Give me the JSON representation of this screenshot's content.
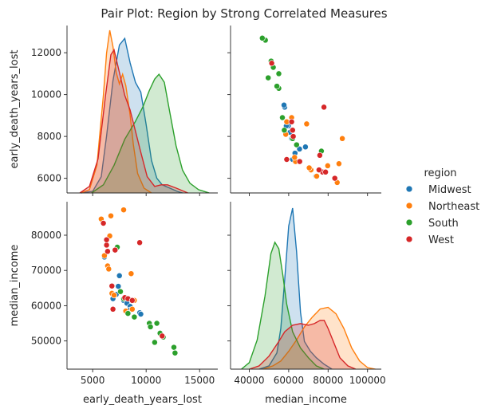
{
  "chart_data": {
    "type": "scatter",
    "title": "Pair Plot: Region by Strong Correlated Measures",
    "variables": [
      "early_death_years_lost",
      "median_income"
    ],
    "legend": {
      "title": "region",
      "placement": "right",
      "entries": [
        "Midwest",
        "Northeast",
        "South",
        "West"
      ]
    },
    "colors": {
      "Midwest": "#1f77b4",
      "Northeast": "#ff7f0e",
      "South": "#2ca02c",
      "West": "#d62728"
    },
    "axes": {
      "early_death_years_lost": {
        "range": [
          2600,
          16700
        ],
        "ticks": [
          5000,
          10000,
          15000
        ],
        "tick_labels": [
          "5000",
          "10000",
          "15000"
        ],
        "axis_range": [
          5300,
          13300
        ],
        "axis_ticks": [
          6000,
          8000,
          10000,
          12000
        ],
        "axis_tick_labels": [
          "6000",
          "8000",
          "10000",
          "12000"
        ]
      },
      "median_income": {
        "range": [
          30500,
          107000
        ],
        "ticks": [
          40000,
          60000,
          80000,
          100000
        ],
        "tick_labels": [
          "40000",
          "60000",
          "80000",
          "100000"
        ],
        "axis_range": [
          42000,
          89500
        ],
        "axis_ticks": [
          50000,
          60000,
          70000,
          80000
        ],
        "axis_tick_labels": [
          "50000",
          "60000",
          "70000",
          "80000"
        ]
      }
    },
    "points": {
      "Midwest": [
        [
          6100,
          73800
        ],
        [
          6900,
          62000
        ],
        [
          7200,
          63200
        ],
        [
          7400,
          65500
        ],
        [
          7500,
          68500
        ],
        [
          7900,
          61500
        ],
        [
          8200,
          60700
        ],
        [
          8500,
          59800
        ],
        [
          8500,
          58800
        ],
        [
          9400,
          57900
        ],
        [
          9400,
          58000
        ],
        [
          9500,
          57600
        ]
      ],
      "Northeast": [
        [
          5800,
          84600
        ],
        [
          6100,
          74200
        ],
        [
          6400,
          71300
        ],
        [
          6500,
          70400
        ],
        [
          6600,
          79800
        ],
        [
          6700,
          85500
        ],
        [
          6800,
          63500
        ],
        [
          7000,
          63000
        ],
        [
          7900,
          87200
        ],
        [
          8100,
          58500
        ],
        [
          8600,
          69100
        ],
        [
          8700,
          59000
        ],
        [
          8900,
          61500
        ]
      ],
      "South": [
        [
          7300,
          76600
        ],
        [
          7600,
          64000
        ],
        [
          7900,
          62000
        ],
        [
          8300,
          57800
        ],
        [
          8900,
          56800
        ],
        [
          10300,
          55000
        ],
        [
          10400,
          54000
        ],
        [
          10800,
          49600
        ],
        [
          11000,
          55000
        ],
        [
          11300,
          52200
        ],
        [
          11600,
          51100
        ],
        [
          12600,
          48200
        ],
        [
          12700,
          46600
        ]
      ],
      "West": [
        [
          6000,
          83400
        ],
        [
          6300,
          77200
        ],
        [
          6300,
          78700
        ],
        [
          6400,
          75400
        ],
        [
          6800,
          65600
        ],
        [
          6900,
          59000
        ],
        [
          7100,
          75800
        ],
        [
          8000,
          62300
        ],
        [
          8300,
          62000
        ],
        [
          8700,
          61500
        ],
        [
          9400,
          77900
        ],
        [
          11500,
          51400
        ]
      ]
    },
    "density_curves": {
      "early_death_years_lost": {
        "Midwest": [
          [
            3900,
            0.0
          ],
          [
            5000,
            0.01
          ],
          [
            5800,
            0.1
          ],
          [
            6300,
            0.35
          ],
          [
            6900,
            0.69
          ],
          [
            7500,
            0.91
          ],
          [
            8000,
            0.95
          ],
          [
            8500,
            0.8
          ],
          [
            9000,
            0.68
          ],
          [
            9500,
            0.62
          ],
          [
            10000,
            0.42
          ],
          [
            10500,
            0.2
          ],
          [
            11000,
            0.09
          ],
          [
            11500,
            0.05
          ],
          [
            12200,
            0.03
          ],
          [
            12900,
            0.01
          ],
          [
            13400,
            0.0
          ]
        ],
        "Northeast": [
          [
            3900,
            0.0
          ],
          [
            4700,
            0.02
          ],
          [
            5400,
            0.17
          ],
          [
            6000,
            0.6
          ],
          [
            6300,
            0.86
          ],
          [
            6600,
            1.0
          ],
          [
            6900,
            0.9
          ],
          [
            7200,
            0.74
          ],
          [
            7500,
            0.67
          ],
          [
            7800,
            0.73
          ],
          [
            8100,
            0.66
          ],
          [
            8500,
            0.48
          ],
          [
            8800,
            0.3
          ],
          [
            9200,
            0.12
          ],
          [
            9800,
            0.03
          ],
          [
            10500,
            0.0
          ]
        ],
        "South": [
          [
            4900,
            0.0
          ],
          [
            6000,
            0.05
          ],
          [
            7000,
            0.17
          ],
          [
            8000,
            0.33
          ],
          [
            9000,
            0.44
          ],
          [
            9700,
            0.53
          ],
          [
            10300,
            0.63
          ],
          [
            10800,
            0.7
          ],
          [
            11200,
            0.73
          ],
          [
            11700,
            0.68
          ],
          [
            12200,
            0.5
          ],
          [
            12800,
            0.29
          ],
          [
            13400,
            0.14
          ],
          [
            14100,
            0.06
          ],
          [
            14900,
            0.02
          ],
          [
            15900,
            0.0
          ]
        ],
        "West": [
          [
            3800,
            0.0
          ],
          [
            4700,
            0.04
          ],
          [
            5500,
            0.21
          ],
          [
            6200,
            0.6
          ],
          [
            6700,
            0.85
          ],
          [
            7000,
            0.88
          ],
          [
            7500,
            0.74
          ],
          [
            8000,
            0.6
          ],
          [
            8500,
            0.51
          ],
          [
            9000,
            0.38
          ],
          [
            9500,
            0.25
          ],
          [
            10100,
            0.1
          ],
          [
            10800,
            0.04
          ],
          [
            11400,
            0.05
          ],
          [
            12000,
            0.05
          ],
          [
            12800,
            0.03
          ],
          [
            13900,
            0.0
          ]
        ]
      },
      "median_income": {
        "Midwest": [
          [
            45000,
            0.0
          ],
          [
            50000,
            0.02
          ],
          [
            54000,
            0.1
          ],
          [
            56000,
            0.25
          ],
          [
            58000,
            0.55
          ],
          [
            60000,
            0.88
          ],
          [
            62000,
            0.99
          ],
          [
            64000,
            0.72
          ],
          [
            66000,
            0.35
          ],
          [
            68000,
            0.17
          ],
          [
            71000,
            0.11
          ],
          [
            74000,
            0.07
          ],
          [
            78000,
            0.03
          ],
          [
            82000,
            0.0
          ]
        ],
        "Northeast": [
          [
            47000,
            0.0
          ],
          [
            52000,
            0.02
          ],
          [
            56000,
            0.05
          ],
          [
            60000,
            0.11
          ],
          [
            64000,
            0.18
          ],
          [
            68000,
            0.26
          ],
          [
            72000,
            0.32
          ],
          [
            76000,
            0.37
          ],
          [
            80000,
            0.38
          ],
          [
            84000,
            0.34
          ],
          [
            88000,
            0.25
          ],
          [
            92000,
            0.13
          ],
          [
            96000,
            0.05
          ],
          [
            100000,
            0.01
          ],
          [
            104000,
            0.0
          ]
        ],
        "South": [
          [
            36000,
            0.0
          ],
          [
            40000,
            0.04
          ],
          [
            44000,
            0.18
          ],
          [
            48000,
            0.45
          ],
          [
            51000,
            0.71
          ],
          [
            53000,
            0.78
          ],
          [
            55000,
            0.74
          ],
          [
            57000,
            0.58
          ],
          [
            59000,
            0.4
          ],
          [
            62000,
            0.23
          ],
          [
            66000,
            0.13
          ],
          [
            70000,
            0.07
          ],
          [
            74000,
            0.02
          ],
          [
            78000,
            0.0
          ]
        ],
        "West": [
          [
            40000,
            0.0
          ],
          [
            45000,
            0.02
          ],
          [
            50000,
            0.08
          ],
          [
            55000,
            0.17
          ],
          [
            58000,
            0.23
          ],
          [
            62000,
            0.27
          ],
          [
            66000,
            0.28
          ],
          [
            70000,
            0.27
          ],
          [
            73000,
            0.28
          ],
          [
            76000,
            0.3
          ],
          [
            78000,
            0.3
          ],
          [
            80000,
            0.25
          ],
          [
            83000,
            0.16
          ],
          [
            86000,
            0.07
          ],
          [
            90000,
            0.02
          ],
          [
            94000,
            0.0
          ]
        ]
      }
    }
  }
}
